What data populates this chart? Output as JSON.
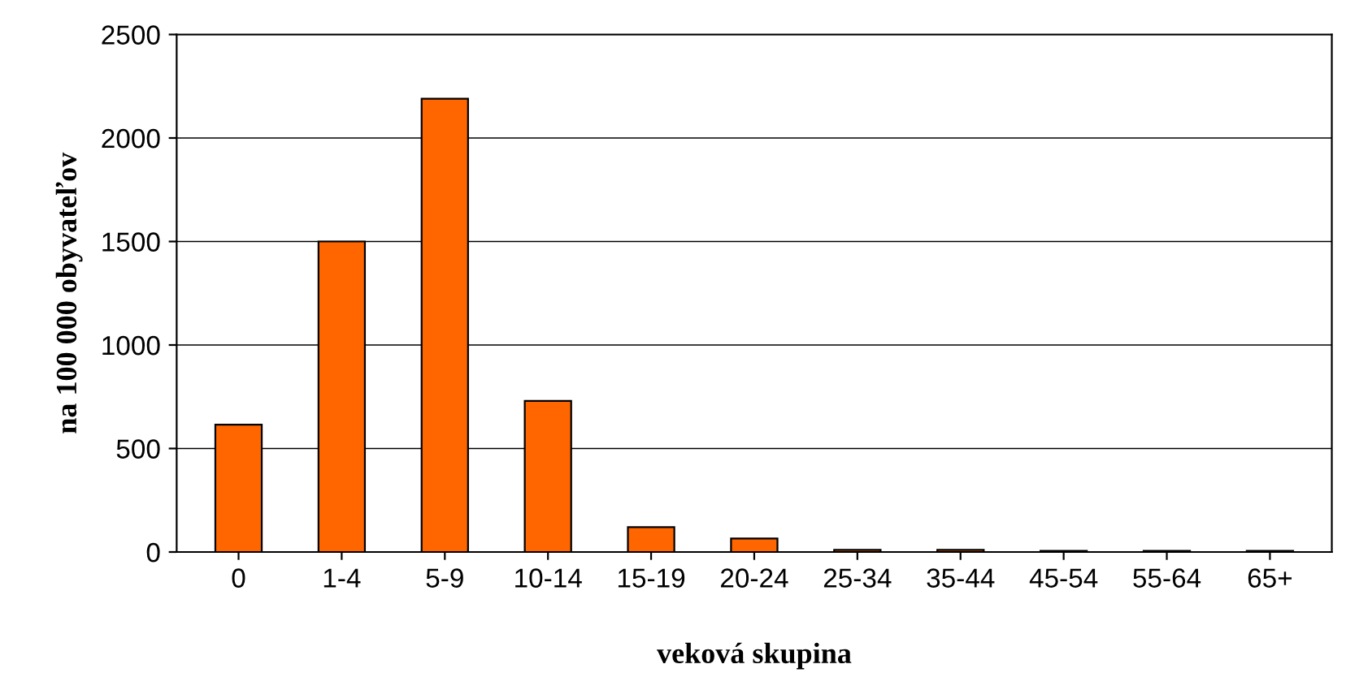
{
  "chart_data": {
    "type": "bar",
    "xlabel": "veková skupina",
    "ylabel": "na 100 000 obyvateľov",
    "categories": [
      "0",
      "1-4",
      "5-9",
      "10-14",
      "15-19",
      "20-24",
      "25-34",
      "35-44",
      "45-54",
      "55-64",
      "65+"
    ],
    "values": [
      615,
      1500,
      2190,
      730,
      120,
      65,
      10,
      10,
      5,
      5,
      5
    ],
    "color": "#ff6600",
    "ylim": [
      0,
      2500
    ],
    "yticks": [
      0,
      500,
      1000,
      1500,
      2000,
      2500
    ],
    "grid": "y"
  }
}
